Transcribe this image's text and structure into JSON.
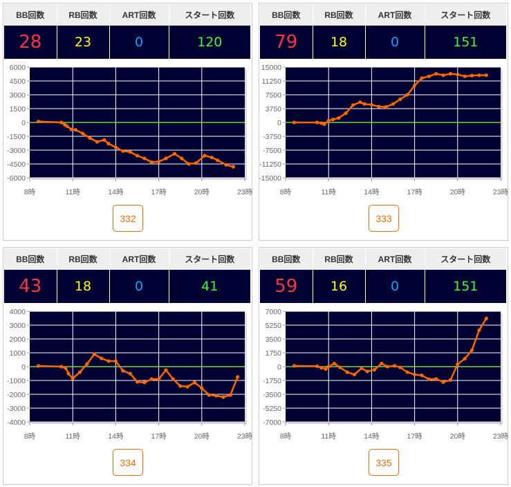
{
  "headers": [
    "BB回数",
    "RB回数",
    "ART回数",
    "スタート回数"
  ],
  "colors": {
    "bb": "#ff3340",
    "rb": "#ffff00",
    "art": "#00aaff",
    "start": "#33ff33",
    "line": "#ff6600",
    "zero": "#66dd33",
    "plot_bg": "#000033"
  },
  "chart_data": [
    {
      "type": "line",
      "machine": "332",
      "stats": {
        "bb": "28",
        "rb": "23",
        "art": "0",
        "start": "120"
      },
      "xlim": [
        8,
        23
      ],
      "xticks": [
        "8時",
        "11時",
        "14時",
        "17時",
        "20時",
        "23時"
      ],
      "ylim": [
        -6000,
        6000
      ],
      "yticks": [
        "6000",
        "4500",
        "3000",
        "1500",
        "0",
        "-1500",
        "-3000",
        "-4500",
        "-6000"
      ],
      "x": [
        8.6,
        10.2,
        10.45,
        10.6,
        10.9,
        11.2,
        11.7,
        12.2,
        12.7,
        13.2,
        13.5,
        14.0,
        14.5,
        15.0,
        15.5,
        16.0,
        16.5,
        17.0,
        17.5,
        18.1,
        18.6,
        19.1,
        19.6,
        20.2,
        20.7,
        21.1,
        21.7,
        22.2
      ],
      "y": [
        100,
        0,
        -250,
        -400,
        -750,
        -800,
        -1200,
        -1700,
        -2100,
        -1900,
        -2300,
        -2700,
        -3100,
        -3200,
        -3600,
        -3900,
        -4300,
        -4250,
        -3900,
        -3400,
        -3900,
        -4500,
        -4400,
        -3600,
        -3800,
        -4100,
        -4600,
        -4800
      ]
    },
    {
      "type": "line",
      "machine": "333",
      "stats": {
        "bb": "79",
        "rb": "18",
        "art": "0",
        "start": "151"
      },
      "xlim": [
        8,
        23
      ],
      "xticks": [
        "8時",
        "11時",
        "14時",
        "17時",
        "20時",
        "23時"
      ],
      "ylim": [
        -15000,
        15000
      ],
      "yticks": [
        "15000",
        "11250",
        "7500",
        "3750",
        "0",
        "-3750",
        "-7500",
        "-11250",
        "-15000"
      ],
      "x": [
        8.6,
        10.2,
        10.5,
        10.7,
        11.0,
        11.3,
        11.7,
        12.2,
        12.7,
        13.2,
        13.5,
        14.0,
        14.5,
        15.0,
        15.5,
        16.0,
        16.5,
        17.0,
        17.5,
        18.0,
        18.5,
        19.0,
        19.5,
        20.0,
        20.5,
        21.0,
        21.5,
        22.0
      ],
      "y": [
        0,
        0,
        -200,
        -500,
        500,
        800,
        1200,
        2500,
        4700,
        5500,
        5000,
        4800,
        4300,
        4200,
        5000,
        6300,
        7500,
        10000,
        12000,
        12500,
        13200,
        12800,
        13200,
        13000,
        12500,
        12700,
        12800,
        12800
      ]
    },
    {
      "type": "line",
      "machine": "334",
      "stats": {
        "bb": "43",
        "rb": "18",
        "art": "0",
        "start": "41"
      },
      "xlim": [
        8,
        23
      ],
      "xticks": [
        "8時",
        "11時",
        "14時",
        "17時",
        "20時",
        "23時"
      ],
      "ylim": [
        -4000,
        4000
      ],
      "yticks": [
        "4000",
        "3000",
        "2000",
        "1000",
        "0",
        "-1000",
        "-2000",
        "-3000",
        "-4000"
      ],
      "x": [
        8.6,
        10.2,
        10.5,
        10.7,
        11.0,
        11.5,
        12.0,
        12.5,
        13.0,
        13.5,
        14.0,
        14.5,
        15.0,
        15.5,
        16.0,
        16.5,
        17.0,
        17.5,
        18.0,
        18.5,
        19.0,
        19.5,
        20.0,
        20.5,
        21.0,
        21.5,
        22.0,
        22.5
      ],
      "y": [
        50,
        0,
        -100,
        -500,
        -850,
        -400,
        200,
        900,
        600,
        400,
        400,
        -300,
        -500,
        -1100,
        -1150,
        -900,
        -900,
        -250,
        -900,
        -1400,
        -1450,
        -1150,
        -1550,
        -2050,
        -2100,
        -2200,
        -2050,
        -750
      ]
    },
    {
      "type": "line",
      "machine": "335",
      "stats": {
        "bb": "59",
        "rb": "16",
        "art": "0",
        "start": "151"
      },
      "xlim": [
        8,
        23
      ],
      "xticks": [
        "8時",
        "11時",
        "14時",
        "17時",
        "20時",
        "23時"
      ],
      "ylim": [
        -7000,
        7000
      ],
      "yticks": [
        "7000",
        "5250",
        "3500",
        "1750",
        "0",
        "-1750",
        "-3500",
        "-5250",
        "-7000"
      ],
      "x": [
        8.6,
        10.2,
        10.5,
        10.8,
        11.0,
        11.4,
        11.8,
        12.3,
        12.8,
        13.3,
        13.7,
        14.2,
        14.7,
        15.1,
        15.6,
        16.0,
        16.5,
        17.0,
        17.5,
        18.0,
        18.5,
        19.0,
        19.5,
        20.0,
        20.5,
        21.0,
        21.5,
        22.0
      ],
      "y": [
        100,
        50,
        -150,
        -300,
        0,
        400,
        -100,
        -700,
        -1000,
        -200,
        -600,
        -400,
        400,
        0,
        100,
        -100,
        -700,
        -1000,
        -1100,
        -1600,
        -1550,
        -1950,
        -1700,
        300,
        1000,
        2100,
        4600,
        6100
      ]
    }
  ]
}
